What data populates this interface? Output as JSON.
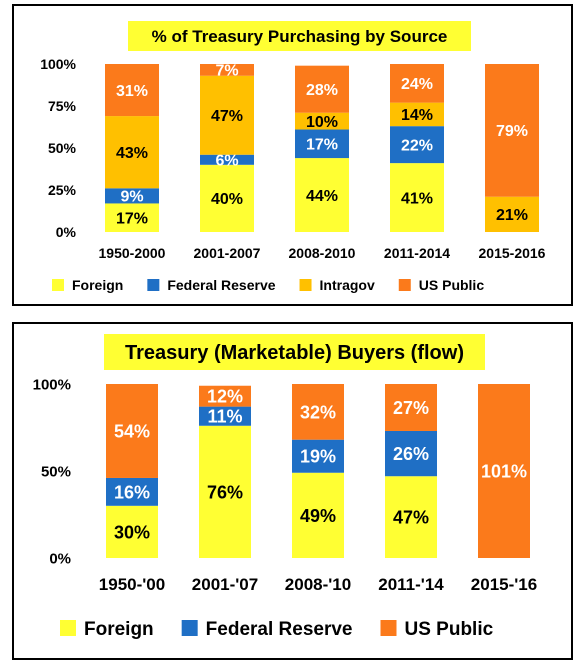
{
  "colors": {
    "foreign": "#ffff33",
    "federal_reserve": "#1f6fc5",
    "intragov": "#ffc000",
    "us_public": "#fb7a1b",
    "title_bg": "#ffff33"
  },
  "chart_data": [
    {
      "type": "bar",
      "stacked": true,
      "title": "% of Treasury Purchasing by Source",
      "categories": [
        "1950-2000",
        "2001-2007",
        "2008-2010",
        "2011-2014",
        "2015-2016"
      ],
      "yticks": [
        "0%",
        "25%",
        "50%",
        "75%",
        "100%"
      ],
      "ylim": [
        0,
        100
      ],
      "legend_position": "bottom",
      "series": [
        {
          "name": "Foreign",
          "color_key": "foreign",
          "values": [
            17,
            40,
            44,
            41,
            0
          ],
          "labels": [
            "17%",
            "40%",
            "44%",
            "41%",
            ""
          ],
          "label_color": "#000000"
        },
        {
          "name": "Federal Reserve",
          "color_key": "federal_reserve",
          "values": [
            9,
            6,
            17,
            22,
            0
          ],
          "labels": [
            "9%",
            "6%",
            "17%",
            "22%",
            ""
          ],
          "label_color": "#ffffff"
        },
        {
          "name": "Intragov",
          "color_key": "intragov",
          "values": [
            43,
            47,
            10,
            14,
            21
          ],
          "labels": [
            "43%",
            "47%",
            "10%",
            "14%",
            "21%"
          ],
          "label_color": "#000000"
        },
        {
          "name": "US Public",
          "color_key": "us_public",
          "values": [
            31,
            7,
            28,
            24,
            79
          ],
          "labels": [
            "31%",
            "7%",
            "28%",
            "24%",
            "79%"
          ],
          "label_color": "#ffffff"
        }
      ]
    },
    {
      "type": "bar",
      "stacked": true,
      "title": "Treasury (Marketable) Buyers (flow)",
      "categories": [
        "1950-'00",
        "2001-'07",
        "2008-'10",
        "2011-'14",
        "2015-'16"
      ],
      "yticks": [
        "0%",
        "50%",
        "100%"
      ],
      "ylim": [
        0,
        100
      ],
      "legend_position": "bottom",
      "series": [
        {
          "name": "Foreign",
          "color_key": "foreign",
          "values": [
            30,
            76,
            49,
            47,
            0
          ],
          "labels": [
            "30%",
            "76%",
            "49%",
            "47%",
            ""
          ],
          "label_color": "#000000"
        },
        {
          "name": "Federal Reserve",
          "color_key": "federal_reserve",
          "values": [
            16,
            11,
            19,
            26,
            0
          ],
          "labels": [
            "16%",
            "11%",
            "19%",
            "26%",
            ""
          ],
          "label_color": "#ffffff"
        },
        {
          "name": "US Public",
          "color_key": "us_public",
          "values": [
            54,
            12,
            32,
            27,
            101
          ],
          "labels": [
            "54%",
            "12%",
            "32%",
            "27%",
            "101%"
          ],
          "label_color": "#ffffff"
        }
      ]
    }
  ]
}
